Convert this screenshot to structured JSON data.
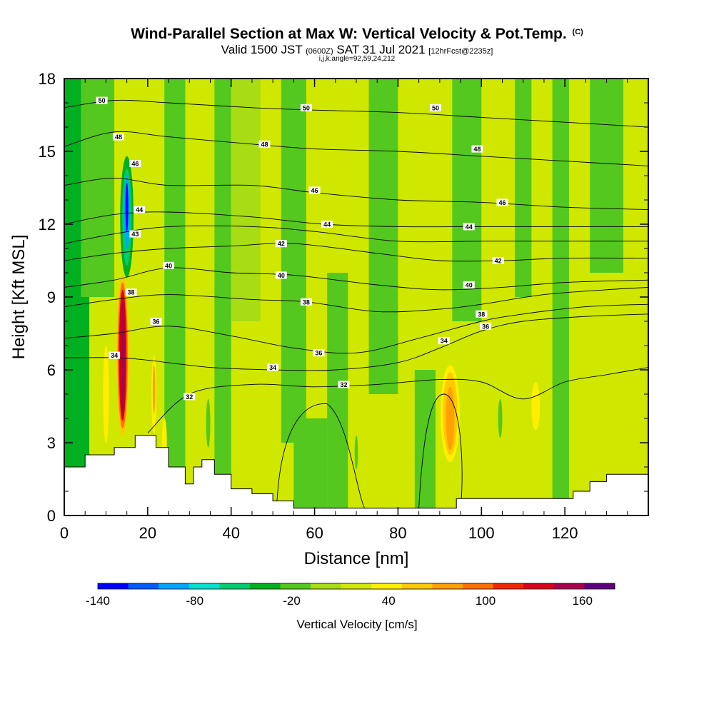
{
  "header": {
    "title": "Wind-Parallel Section at Max W: Vertical Velocity & Pot.Temp.",
    "copyright": "(C)",
    "valid_prefix": "Valid 1500 JST",
    "valid_utc": "(0600Z)",
    "valid_date": "SAT 31 Jul 2021",
    "forecast": "[12hrFcst@2235z]",
    "indices": "i,j,k,angle=92,59,24,212"
  },
  "chart_data": {
    "type": "heatmap",
    "title": "Wind-Parallel Section at Max W: Vertical Velocity & Pot.Temp.",
    "xlabel": "Distance [nm]",
    "ylabel": "Height [Kft MSL]",
    "xlim": [
      0,
      140
    ],
    "ylim": [
      0,
      18
    ],
    "x_ticks": [
      0,
      20,
      40,
      60,
      80,
      100,
      120
    ],
    "y_ticks": [
      0,
      3,
      6,
      9,
      12,
      15,
      18
    ],
    "colorbar": {
      "label": "Vertical Velocity [cm/s]",
      "tick_labels": [
        "-140",
        "-80",
        "-20",
        "40",
        "100",
        "160"
      ],
      "tick_values": [
        -140,
        -80,
        -20,
        40,
        100,
        160
      ],
      "range": [
        -140,
        180
      ],
      "colors": [
        "#0000ff",
        "#005cff",
        "#00a8ff",
        "#00e0d0",
        "#00cc70",
        "#00b020",
        "#54c81e",
        "#a8dc14",
        "#d0e800",
        "#ffee00",
        "#ffc800",
        "#ffa000",
        "#ff7000",
        "#f02800",
        "#d8001c",
        "#a80050",
        "#600080"
      ]
    },
    "background_velocity": "0 to 20 cm/s",
    "features": [
      {
        "name": "downdraft",
        "x": 15,
        "y_range": [
          10.5,
          14.2
        ],
        "min_velocity": -140
      },
      {
        "name": "updraft",
        "x": 14,
        "y_range": [
          3.5,
          9.8
        ],
        "max_velocity": 160
      },
      {
        "name": "updraft",
        "x": 93,
        "y_range": [
          2.5,
          6.0
        ],
        "max_velocity": 80
      },
      {
        "name": "updraft",
        "x": 113,
        "y_range": [
          3.5,
          5.5
        ],
        "max_velocity": 40
      }
    ],
    "terrain": [
      {
        "x": 0,
        "h": 2.0
      },
      {
        "x": 5,
        "h": 2.5
      },
      {
        "x": 12,
        "h": 2.8
      },
      {
        "x": 17,
        "h": 3.3
      },
      {
        "x": 22,
        "h": 2.8
      },
      {
        "x": 25,
        "h": 2.0
      },
      {
        "x": 29,
        "h": 1.3
      },
      {
        "x": 31,
        "h": 2.0
      },
      {
        "x": 33,
        "h": 2.3
      },
      {
        "x": 36,
        "h": 1.7
      },
      {
        "x": 40,
        "h": 1.1
      },
      {
        "x": 45,
        "h": 0.9
      },
      {
        "x": 50,
        "h": 0.6
      },
      {
        "x": 55,
        "h": 0.3
      },
      {
        "x": 90,
        "h": 0.3
      },
      {
        "x": 94,
        "h": 0.7
      },
      {
        "x": 100,
        "h": 0.7
      },
      {
        "x": 115,
        "h": 0.7
      },
      {
        "x": 122,
        "h": 1.0
      },
      {
        "x": 126,
        "h": 1.4
      },
      {
        "x": 130,
        "h": 1.7
      },
      {
        "x": 140,
        "h": 1.7
      }
    ],
    "isentropes": [
      {
        "theta": 32,
        "pts": [
          [
            20,
            3.4
          ],
          [
            30,
            5.0
          ],
          [
            45,
            5.4
          ],
          [
            60,
            5.3
          ],
          [
            75,
            5.4
          ],
          [
            90,
            5.6
          ],
          [
            100,
            5.5
          ],
          [
            110,
            4.8
          ],
          [
            120,
            5.5
          ],
          [
            130,
            5.8
          ],
          [
            140,
            6.1
          ]
        ],
        "labels": [
          {
            "x": 30,
            "y": 4.9
          },
          {
            "x": 67,
            "y": 5.4
          }
        ]
      },
      {
        "theta": 34,
        "pts": [
          [
            0,
            6.5
          ],
          [
            12,
            6.5
          ],
          [
            20,
            6.4
          ],
          [
            35,
            6.1
          ],
          [
            50,
            6.0
          ],
          [
            65,
            6.0
          ],
          [
            80,
            6.3
          ],
          [
            90,
            6.9
          ],
          [
            100,
            7.6
          ],
          [
            110,
            8.0
          ],
          [
            125,
            8.2
          ],
          [
            140,
            8.3
          ]
        ],
        "labels": [
          {
            "x": 12,
            "y": 6.6
          },
          {
            "x": 50,
            "y": 6.1
          },
          {
            "x": 91,
            "y": 7.2
          }
        ]
      },
      {
        "theta": 36,
        "pts": [
          [
            0,
            7.3
          ],
          [
            12,
            7.5
          ],
          [
            25,
            7.8
          ],
          [
            40,
            7.4
          ],
          [
            55,
            6.9
          ],
          [
            70,
            6.7
          ],
          [
            85,
            7.3
          ],
          [
            100,
            8.0
          ],
          [
            110,
            8.3
          ],
          [
            125,
            8.6
          ],
          [
            140,
            8.7
          ]
        ],
        "labels": [
          {
            "x": 22,
            "y": 8.0
          },
          {
            "x": 61,
            "y": 6.7
          },
          {
            "x": 101,
            "y": 7.8
          }
        ]
      },
      {
        "theta": 38,
        "pts": [
          [
            0,
            8.6
          ],
          [
            12,
            8.9
          ],
          [
            25,
            9.1
          ],
          [
            45,
            8.9
          ],
          [
            58,
            8.8
          ],
          [
            75,
            8.4
          ],
          [
            90,
            8.5
          ],
          [
            100,
            8.7
          ],
          [
            115,
            9.1
          ],
          [
            130,
            9.3
          ],
          [
            140,
            9.4
          ]
        ],
        "labels": [
          {
            "x": 16,
            "y": 9.2
          },
          {
            "x": 58,
            "y": 8.8
          },
          {
            "x": 100,
            "y": 8.3
          }
        ]
      },
      {
        "theta": 40,
        "pts": [
          [
            0,
            9.4
          ],
          [
            12,
            9.7
          ],
          [
            25,
            10.2
          ],
          [
            40,
            10.0
          ],
          [
            55,
            9.9
          ],
          [
            75,
            9.5
          ],
          [
            90,
            9.3
          ],
          [
            105,
            9.4
          ],
          [
            120,
            9.6
          ],
          [
            140,
            9.7
          ]
        ],
        "labels": [
          {
            "x": 25,
            "y": 10.3
          },
          {
            "x": 52,
            "y": 9.9
          },
          {
            "x": 97,
            "y": 9.5
          }
        ]
      },
      {
        "theta": 42,
        "pts": [
          [
            0,
            10.5
          ],
          [
            12,
            10.8
          ],
          [
            25,
            11.0
          ],
          [
            40,
            11.1
          ],
          [
            55,
            11.2
          ],
          [
            75,
            10.8
          ],
          [
            90,
            10.5
          ],
          [
            105,
            10.5
          ],
          [
            120,
            10.6
          ],
          [
            140,
            10.6
          ]
        ],
        "labels": [
          {
            "x": 52,
            "y": 11.2
          },
          {
            "x": 104,
            "y": 10.5
          }
        ]
      },
      {
        "theta": 43,
        "pts": [
          [
            0,
            11.2
          ],
          [
            12,
            11.6
          ],
          [
            25,
            11.9
          ],
          [
            45,
            11.9
          ],
          [
            60,
            11.7
          ],
          [
            80,
            11.3
          ],
          [
            100,
            11.3
          ],
          [
            120,
            11.3
          ],
          [
            140,
            11.3
          ]
        ],
        "labels": [
          {
            "x": 17,
            "y": 11.6
          }
        ]
      },
      {
        "theta": 44,
        "pts": [
          [
            0,
            12.0
          ],
          [
            12,
            12.4
          ],
          [
            25,
            12.5
          ],
          [
            45,
            12.3
          ],
          [
            62,
            12.0
          ],
          [
            80,
            11.9
          ],
          [
            100,
            11.9
          ],
          [
            120,
            11.9
          ],
          [
            140,
            11.9
          ]
        ],
        "labels": [
          {
            "x": 18,
            "y": 12.6
          },
          {
            "x": 63,
            "y": 12.0
          },
          {
            "x": 97,
            "y": 11.9
          }
        ]
      },
      {
        "theta": 46,
        "pts": [
          [
            0,
            13.6
          ],
          [
            12,
            13.9
          ],
          [
            25,
            13.6
          ],
          [
            45,
            13.6
          ],
          [
            60,
            13.3
          ],
          [
            80,
            13.0
          ],
          [
            100,
            12.9
          ],
          [
            120,
            12.7
          ],
          [
            140,
            12.6
          ]
        ],
        "labels": [
          {
            "x": 17,
            "y": 14.5
          },
          {
            "x": 60,
            "y": 13.4
          },
          {
            "x": 105,
            "y": 12.9
          }
        ]
      },
      {
        "theta": 48,
        "pts": [
          [
            0,
            15.2
          ],
          [
            12,
            15.8
          ],
          [
            25,
            15.6
          ],
          [
            45,
            15.3
          ],
          [
            60,
            15.1
          ],
          [
            80,
            15.0
          ],
          [
            100,
            14.8
          ],
          [
            120,
            14.6
          ],
          [
            140,
            14.4
          ]
        ],
        "labels": [
          {
            "x": 13,
            "y": 15.6
          },
          {
            "x": 48,
            "y": 15.3
          },
          {
            "x": 99,
            "y": 15.1
          }
        ]
      },
      {
        "theta": 50,
        "pts": [
          [
            0,
            16.8
          ],
          [
            12,
            17.1
          ],
          [
            25,
            17.0
          ],
          [
            45,
            16.8
          ],
          [
            60,
            16.7
          ],
          [
            80,
            16.6
          ],
          [
            100,
            16.4
          ],
          [
            120,
            16.2
          ],
          [
            140,
            16.0
          ]
        ],
        "labels": [
          {
            "x": 9,
            "y": 17.1
          },
          {
            "x": 58,
            "y": 16.8
          },
          {
            "x": 89,
            "y": 16.8
          }
        ]
      }
    ]
  }
}
